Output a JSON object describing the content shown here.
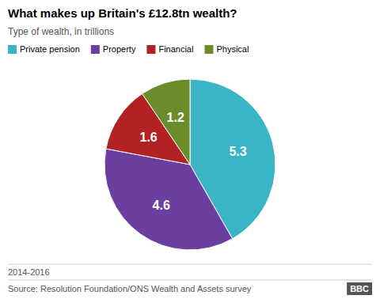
{
  "chart_data": {
    "type": "pie",
    "title": "What makes up Britain's £12.8tn wealth?",
    "subtitle": "Type of wealth, in trillions",
    "categories": [
      "Private pension",
      "Property",
      "Financial",
      "Physical"
    ],
    "values": [
      5.3,
      4.6,
      1.6,
      1.2
    ],
    "colors": [
      "#3ab5c6",
      "#6b3fa0",
      "#b22222",
      "#6b8c2a"
    ],
    "data_labels": true,
    "legend": "upper left",
    "annotations": [
      "2014-2016",
      "Source: Resolution Foundation/ONS Wealth and Assets survey",
      "BBC"
    ]
  }
}
